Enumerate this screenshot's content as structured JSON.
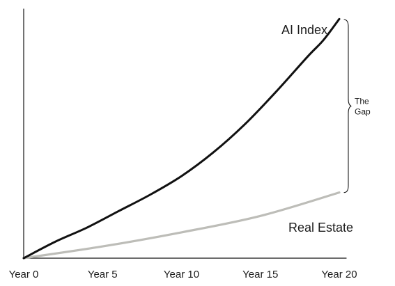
{
  "chart_data": {
    "type": "line",
    "title": "",
    "xlabel": "",
    "ylabel": "",
    "x": [
      0,
      5,
      10,
      15,
      20
    ],
    "x_tick_labels": [
      "Year 0",
      "Year 5",
      "Year 10",
      "Year 15",
      "Year 20"
    ],
    "xlim": [
      0,
      20
    ],
    "ylim": [
      0,
      100
    ],
    "grid": false,
    "legend": "none (series labeled inline)",
    "series": [
      {
        "name": "AI Index",
        "color": "#111111",
        "x": [
          0,
          2,
          4,
          6,
          8,
          10,
          12,
          14,
          16,
          18,
          19,
          20
        ],
        "values": [
          0,
          7,
          13,
          20,
          27,
          35,
          45,
          57,
          71,
          86,
          93,
          102
        ]
      },
      {
        "name": "Real Estate",
        "color": "#bdbdb8",
        "x": [
          0,
          5,
          10,
          15,
          20
        ],
        "values": [
          0,
          5,
          11,
          18,
          28
        ]
      }
    ],
    "annotation": {
      "label_line1": "The",
      "label_line2": "Gap",
      "spans_from_series": "Real Estate",
      "spans_to_series": "AI Index",
      "at_x": 20
    }
  }
}
